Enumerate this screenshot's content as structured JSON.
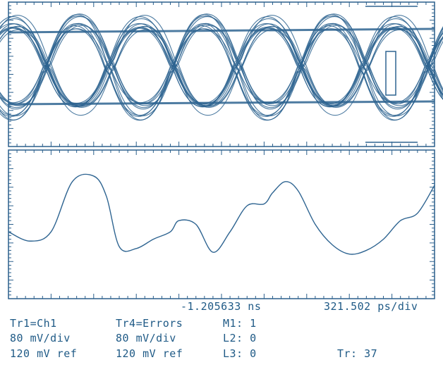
{
  "colors": {
    "trace": "#2e6491",
    "frame": "#2a5f8c",
    "text": "#1f5a86",
    "background": "#ffffff"
  },
  "readout": {
    "time_offset": "-1.205633 ns",
    "timebase": "321.502 ps/div"
  },
  "traces": {
    "tr1": {
      "source": "Tr1=Ch1",
      "scale": "80 mV/div",
      "ref": "120 mV ref"
    },
    "tr4": {
      "source": "Tr4=Errors",
      "scale": "80 mV/div",
      "ref": "120 mV ref"
    }
  },
  "markers": {
    "m1": "M1: 1",
    "l2": "L2: 0",
    "l3": "L3: 0"
  },
  "trace_count": "Tr: 37",
  "chart_data": [
    {
      "type": "eye-diagram",
      "title": "",
      "xlabel": "",
      "ylabel": "",
      "grid": false,
      "unit_intervals": 6.7,
      "levels": [
        "high",
        "low"
      ],
      "trace_overlays": 37
    },
    {
      "type": "line",
      "title": "",
      "xlabel": "",
      "ylabel": "",
      "grid": false,
      "x_divisions": 10,
      "y_divisions": 8,
      "x": [
        0.0,
        0.5,
        1.0,
        1.5,
        2.0,
        2.3,
        2.6,
        3.0,
        3.4,
        3.8,
        4.0,
        4.4,
        4.8,
        5.2,
        5.6,
        6.0,
        6.2,
        6.5,
        6.8,
        7.2,
        7.6,
        8.0,
        8.4,
        8.8,
        9.2,
        9.6,
        10.0
      ],
      "y": [
        3.6,
        3.1,
        3.6,
        6.3,
        6.6,
        5.5,
        2.8,
        2.7,
        3.2,
        3.6,
        4.2,
        4.0,
        2.5,
        3.6,
        5.0,
        5.1,
        5.7,
        6.3,
        5.8,
        4.0,
        2.9,
        2.4,
        2.6,
        3.2,
        4.2,
        4.6,
        6.1
      ]
    }
  ]
}
